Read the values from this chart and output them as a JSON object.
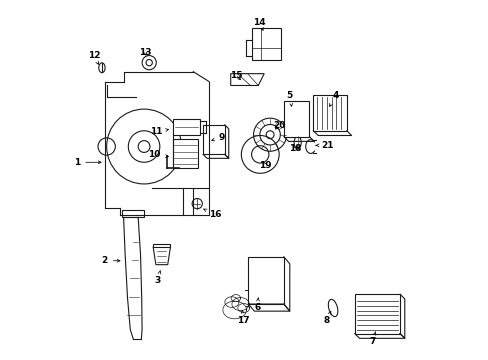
{
  "bg_color": "#ffffff",
  "line_color": "#1a1a1a",
  "parts_labels": {
    "1": [
      0.085,
      0.515,
      0.155,
      0.515
    ],
    "2": [
      0.175,
      0.255,
      0.225,
      0.255
    ],
    "3": [
      0.305,
      0.21,
      0.315,
      0.235
    ],
    "4": [
      0.74,
      0.695,
      0.72,
      0.67
    ],
    "5": [
      0.635,
      0.695,
      0.61,
      0.67
    ],
    "6": [
      0.545,
      0.155,
      0.545,
      0.185
    ],
    "7": [
      0.83,
      0.065,
      0.845,
      0.1
    ],
    "8": [
      0.72,
      0.115,
      0.735,
      0.145
    ],
    "9": [
      0.44,
      0.585,
      0.405,
      0.575
    ],
    "10": [
      0.285,
      0.54,
      0.33,
      0.545
    ],
    "11": [
      0.29,
      0.595,
      0.335,
      0.608
    ],
    "12": [
      0.135,
      0.785,
      0.147,
      0.76
    ],
    "13": [
      0.265,
      0.795,
      0.265,
      0.77
    ],
    "14": [
      0.555,
      0.875,
      0.565,
      0.845
    ],
    "15": [
      0.495,
      0.73,
      0.515,
      0.71
    ],
    "16": [
      0.435,
      0.385,
      0.41,
      0.395
    ],
    "17": [
      0.51,
      0.115,
      0.505,
      0.155
    ],
    "18": [
      0.635,
      0.555,
      0.615,
      0.565
    ],
    "19": [
      0.565,
      0.515,
      0.555,
      0.535
    ],
    "20": [
      0.595,
      0.61,
      0.578,
      0.59
    ],
    "21": [
      0.72,
      0.565,
      0.685,
      0.565
    ]
  }
}
